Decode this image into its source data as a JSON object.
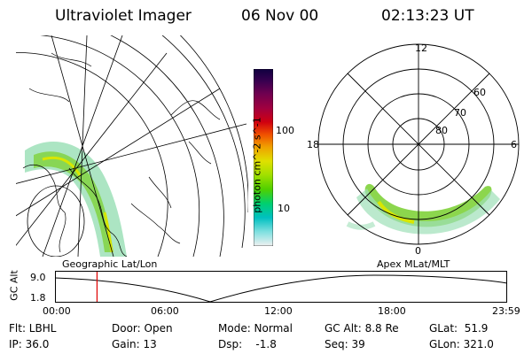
{
  "header": {
    "instrument": "Ultraviolet Imager",
    "date": "06 Nov 00",
    "time": "02:13:23 UT"
  },
  "colorbar": {
    "units_label": "photon cm^-2 s^-1",
    "scale": "log",
    "range": [
      3,
      300
    ],
    "ticks": [
      {
        "label": "100",
        "value": 100
      },
      {
        "label": "10",
        "value": 10
      }
    ],
    "colors_top_to_bottom": [
      "#100040",
      "#3a0050",
      "#700050",
      "#a00040",
      "#d00010",
      "#f05000",
      "#f0a000",
      "#e0e000",
      "#a0e000",
      "#50d000",
      "#00d070",
      "#00c0c0",
      "#80e0e0",
      "#f0f0f0"
    ]
  },
  "geo_map": {
    "caption": "Geographic Lat/Lon"
  },
  "polar_plot": {
    "caption": "Apex MLat/MLT",
    "mlt_labels": [
      "12",
      "18",
      "6",
      "0"
    ],
    "mlat_labels": [
      "60",
      "70",
      "80"
    ]
  },
  "timeline": {
    "axis_label": "GC Alt",
    "y_ticks": [
      "9.0",
      "1.8"
    ],
    "x_ticks": [
      "00:00",
      "06:00",
      "12:00",
      "18:00",
      "23:59"
    ],
    "marker_time": "02:13",
    "marker_fraction": 0.093
  },
  "params": {
    "filter": "Flt: LBHL",
    "ip": "IP: 36.0",
    "door": "Door: Open",
    "gain": "Gain: 13",
    "mode": "Mode: Normal",
    "dsp": "Dsp:    -1.8",
    "gc_alt": "GC Alt: 8.8 Re",
    "seq": "Seq: 39",
    "glat": "GLat:  51.9",
    "glon": "GLon: 321.0"
  }
}
